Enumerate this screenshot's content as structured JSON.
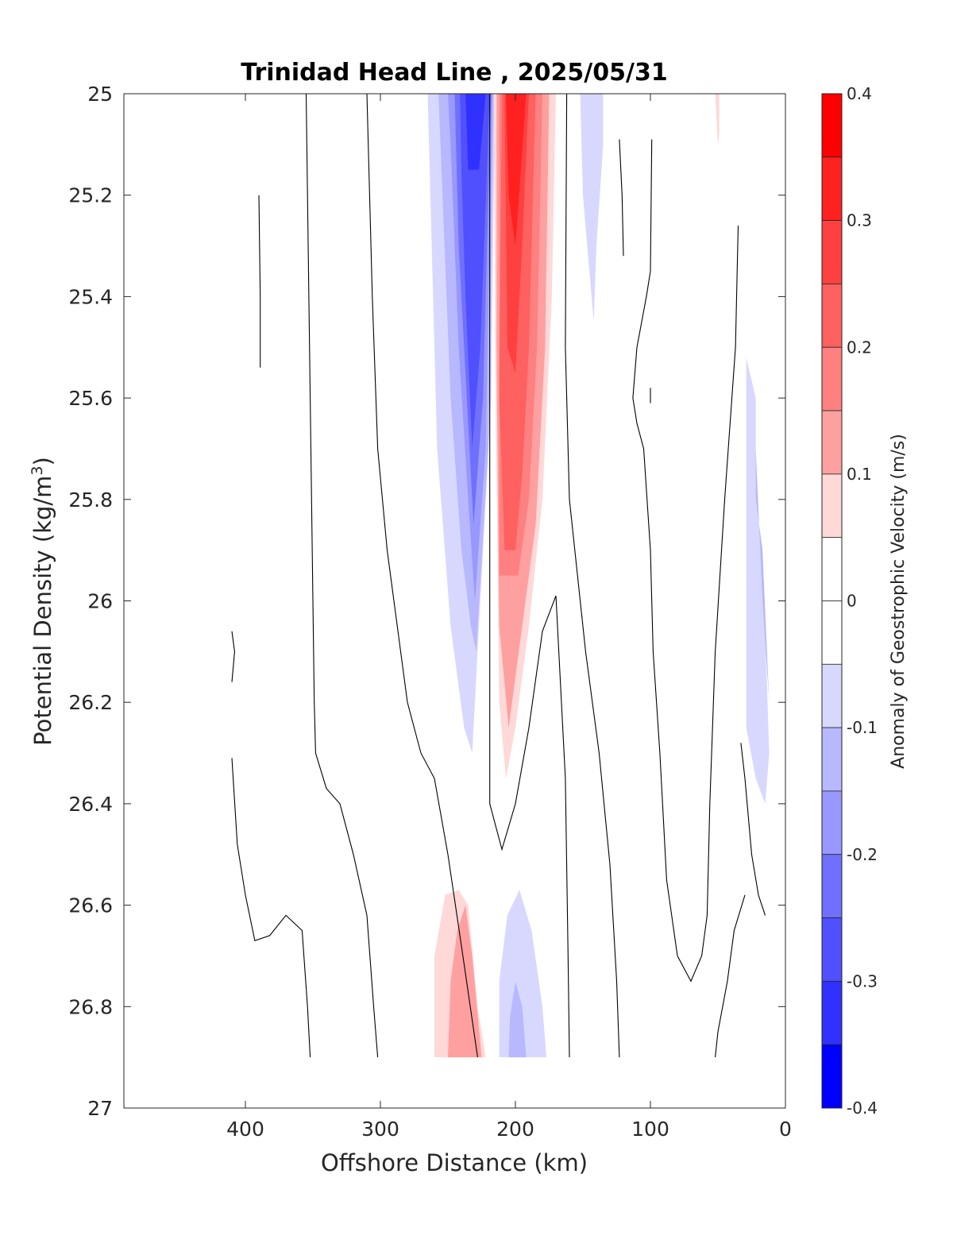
{
  "chart_data": {
    "type": "contour",
    "title": "Trinidad Head Line , 2025/05/31",
    "xlabel": "Offshore Distance (km)",
    "ylabel_main": "Potential Density (kg/m",
    "ylabel_sup": "3",
    "ylabel_close": ")",
    "xlim": [
      490,
      0
    ],
    "ylim": [
      25,
      27
    ],
    "x_reversed": true,
    "y_reversed": true,
    "x_ticks": [
      400,
      300,
      200,
      100,
      0
    ],
    "x_tick_labels": [
      "400",
      "300",
      "200",
      "100",
      "0"
    ],
    "y_ticks": [
      25,
      25.2,
      25.4,
      25.6,
      25.8,
      26,
      26.2,
      26.4,
      26.6,
      26.8,
      27
    ],
    "y_tick_labels": [
      "25",
      "25.2",
      "25.4",
      "25.6",
      "25.8",
      "26",
      "26.2",
      "26.4",
      "26.6",
      "26.8",
      "27"
    ],
    "colorbar": {
      "label": "Anomaly of Geostrophic Velocity (m/s)",
      "range": [
        -0.4,
        0.4
      ],
      "ticks": [
        0.4,
        0.3,
        0.2,
        0.1,
        0,
        -0.1,
        -0.2,
        -0.3,
        -0.4
      ],
      "tick_labels": [
        "0.4",
        "0.3",
        "0.2",
        "0.1",
        "0",
        "-0.1",
        "-0.2",
        "-0.3",
        "-0.4"
      ],
      "levels": [
        {
          "lo": 0.35,
          "hi": 0.4,
          "color": "#ff0000"
        },
        {
          "lo": 0.3,
          "hi": 0.35,
          "color": "#ff2020"
        },
        {
          "lo": 0.25,
          "hi": 0.3,
          "color": "#ff4040"
        },
        {
          "lo": 0.2,
          "hi": 0.25,
          "color": "#ff6060"
        },
        {
          "lo": 0.15,
          "hi": 0.2,
          "color": "#ff8080"
        },
        {
          "lo": 0.1,
          "hi": 0.15,
          "color": "#ffa0a0"
        },
        {
          "lo": 0.05,
          "hi": 0.1,
          "color": "#ffd8d8"
        },
        {
          "lo": 0,
          "hi": 0.05,
          "color": "#ffffff"
        },
        {
          "lo": -0.05,
          "hi": 0,
          "color": "#ffffff"
        },
        {
          "lo": -0.1,
          "hi": -0.05,
          "color": "#d8d8ff"
        },
        {
          "lo": -0.15,
          "hi": -0.1,
          "color": "#b8b8ff"
        },
        {
          "lo": -0.2,
          "hi": -0.15,
          "color": "#9898ff"
        },
        {
          "lo": -0.25,
          "hi": -0.2,
          "color": "#7070ff"
        },
        {
          "lo": -0.3,
          "hi": -0.25,
          "color": "#5050ff"
        },
        {
          "lo": -0.35,
          "hi": -0.3,
          "color": "#3030ff"
        },
        {
          "lo": -0.4,
          "hi": -0.35,
          "color": "#0000ff"
        }
      ]
    },
    "filled_regions": [
      {
        "name": "southward-core-blue-1",
        "color": "#d8d8ff",
        "points": [
          [
            265,
            25
          ],
          [
            215,
            25
          ],
          [
            218,
            25.6
          ],
          [
            228,
            26.1
          ],
          [
            232,
            26.3
          ],
          [
            238,
            26.25
          ],
          [
            248,
            26.05
          ],
          [
            258,
            25.7
          ],
          [
            262,
            25.3
          ]
        ]
      },
      {
        "name": "southward-core-blue-2",
        "color": "#b8b8ff",
        "points": [
          [
            257,
            25
          ],
          [
            216,
            25
          ],
          [
            220,
            25.7
          ],
          [
            229,
            26.1
          ],
          [
            233,
            26.05
          ],
          [
            240,
            25.9
          ],
          [
            248,
            25.6
          ],
          [
            254,
            25.2
          ]
        ]
      },
      {
        "name": "southward-core-blue-3",
        "color": "#9898ff",
        "points": [
          [
            250,
            25
          ],
          [
            217,
            25
          ],
          [
            222,
            25.7
          ],
          [
            230,
            26.0
          ],
          [
            235,
            25.8
          ],
          [
            242,
            25.5
          ],
          [
            248,
            25.1
          ]
        ]
      },
      {
        "name": "southward-core-blue-4",
        "color": "#7070ff",
        "points": [
          [
            245,
            25
          ],
          [
            218,
            25
          ],
          [
            224,
            25.6
          ],
          [
            231,
            25.85
          ],
          [
            236,
            25.6
          ],
          [
            242,
            25.3
          ]
        ]
      },
      {
        "name": "southward-core-blue-5",
        "color": "#5050ff",
        "points": [
          [
            241,
            25
          ],
          [
            219,
            25
          ],
          [
            226,
            25.5
          ],
          [
            232,
            25.7
          ],
          [
            237,
            25.4
          ],
          [
            240,
            25.15
          ]
        ]
      },
      {
        "name": "southward-core-blue-6",
        "color": "#3030ff",
        "points": [
          [
            237,
            25
          ],
          [
            222,
            25
          ],
          [
            227,
            25.15
          ],
          [
            235,
            25.15
          ]
        ]
      },
      {
        "name": "northward-core-red-1",
        "color": "#ffd8d8",
        "points": [
          [
            216,
            25
          ],
          [
            170,
            25
          ],
          [
            173,
            25.4
          ],
          [
            180,
            25.8
          ],
          [
            190,
            26.05
          ],
          [
            200,
            26.25
          ],
          [
            207,
            26.35
          ],
          [
            212,
            26.2
          ],
          [
            215,
            25.5
          ]
        ]
      },
      {
        "name": "northward-core-red-2",
        "color": "#ffa0a0",
        "points": [
          [
            214,
            25
          ],
          [
            175,
            25
          ],
          [
            178,
            25.5
          ],
          [
            185,
            25.85
          ],
          [
            195,
            26.05
          ],
          [
            205,
            26.25
          ],
          [
            212,
            26.05
          ],
          [
            214,
            25.5
          ]
        ]
      },
      {
        "name": "northward-core-red-3",
        "color": "#ff8080",
        "points": [
          [
            212,
            25
          ],
          [
            180,
            25
          ],
          [
            184,
            25.5
          ],
          [
            190,
            25.8
          ],
          [
            198,
            25.95
          ],
          [
            212,
            25.95
          ]
        ]
      },
      {
        "name": "northward-core-red-4",
        "color": "#ff6060",
        "points": [
          [
            210,
            25
          ],
          [
            185,
            25
          ],
          [
            190,
            25.5
          ],
          [
            195,
            25.75
          ],
          [
            200,
            25.9
          ],
          [
            208,
            25.9
          ],
          [
            212,
            25.6
          ]
        ]
      },
      {
        "name": "northward-core-red-5",
        "color": "#ff4040",
        "points": [
          [
            208,
            25
          ],
          [
            190,
            25
          ],
          [
            195,
            25.3
          ],
          [
            200,
            25.55
          ],
          [
            206,
            25.5
          ]
        ]
      },
      {
        "name": "northward-core-red-6",
        "color": "#ff2020",
        "points": [
          [
            207,
            25
          ],
          [
            192,
            25
          ],
          [
            196,
            25.15
          ],
          [
            200,
            25.3
          ],
          [
            205,
            25.2
          ]
        ]
      },
      {
        "name": "offshore-blue-patch-140km",
        "color": "#d8d8ff",
        "points": [
          [
            152,
            25
          ],
          [
            135,
            25
          ],
          [
            135,
            25.1
          ],
          [
            140,
            25.3
          ],
          [
            142,
            25.45
          ],
          [
            150,
            25.2
          ]
        ]
      },
      {
        "name": "nearshore-red-sliver-50km",
        "color": "#ffd8d8",
        "points": [
          [
            52,
            25
          ],
          [
            49,
            25
          ],
          [
            49,
            25.08
          ],
          [
            50,
            25.1
          ],
          [
            51,
            25.05
          ]
        ]
      },
      {
        "name": "nearshore-blue-1",
        "color": "#d8d8ff",
        "points": [
          [
            29,
            25.52
          ],
          [
            22,
            25.6
          ],
          [
            22,
            25.8
          ],
          [
            17,
            25.9
          ],
          [
            12,
            26.3
          ],
          [
            15,
            26.4
          ],
          [
            22,
            26.35
          ],
          [
            29,
            26.25
          ]
        ]
      },
      {
        "name": "nearshore-blue-2",
        "color": "#b8b8ff",
        "points": [
          [
            22,
            25.6
          ],
          [
            22,
            25.8
          ],
          [
            17,
            25.9
          ],
          [
            12,
            26.2
          ],
          [
            17,
            26.0
          ],
          [
            22,
            25.7
          ]
        ]
      },
      {
        "name": "deep-red-patch-240km",
        "color": "#ffd8d8",
        "points": [
          [
            260,
            26.9
          ],
          [
            222,
            26.9
          ],
          [
            228,
            26.8
          ],
          [
            235,
            26.6
          ],
          [
            242,
            26.57
          ],
          [
            252,
            26.58
          ],
          [
            260,
            26.7
          ]
        ]
      },
      {
        "name": "deep-red-patch-240km-core",
        "color": "#ffa0a0",
        "points": [
          [
            250,
            26.9
          ],
          [
            225,
            26.9
          ],
          [
            232,
            26.7
          ],
          [
            237,
            26.6
          ],
          [
            243,
            26.65
          ],
          [
            248,
            26.75
          ]
        ]
      },
      {
        "name": "deep-blue-patch-200km",
        "color": "#d8d8ff",
        "points": [
          [
            212,
            26.9
          ],
          [
            177,
            26.9
          ],
          [
            180,
            26.8
          ],
          [
            188,
            26.65
          ],
          [
            197,
            26.57
          ],
          [
            206,
            26.62
          ],
          [
            212,
            26.75
          ]
        ]
      },
      {
        "name": "deep-blue-patch-200km-core",
        "color": "#b8b8ff",
        "points": [
          [
            205,
            26.9
          ],
          [
            192,
            26.9
          ],
          [
            195,
            26.8
          ],
          [
            200,
            26.75
          ],
          [
            204,
            26.82
          ]
        ]
      }
    ],
    "contour_lines": [
      {
        "name": "contour-line-1",
        "points": [
          [
            390,
            25.2
          ],
          [
            389,
            25.4
          ],
          [
            389,
            25.54
          ]
        ]
      },
      {
        "name": "contour-line-2",
        "points": [
          [
            410,
            26.06
          ],
          [
            408,
            26.1
          ],
          [
            410,
            26.16
          ]
        ]
      },
      {
        "name": "contour-line-3",
        "points": [
          [
            410,
            26.31
          ],
          [
            406,
            26.48
          ],
          [
            400,
            26.58
          ],
          [
            393,
            26.67
          ],
          [
            382,
            26.66
          ],
          [
            370,
            26.62
          ],
          [
            358,
            26.65
          ],
          [
            354,
            26.8
          ],
          [
            352,
            26.9
          ]
        ]
      },
      {
        "name": "contour-line-4",
        "points": [
          [
            355,
            25
          ],
          [
            353,
            25.4
          ],
          [
            351,
            25.8
          ],
          [
            349,
            26.2
          ],
          [
            348,
            26.3
          ],
          [
            340,
            26.37
          ],
          [
            330,
            26.4
          ],
          [
            320,
            26.5
          ],
          [
            310,
            26.62
          ],
          [
            305,
            26.8
          ],
          [
            302,
            26.9
          ]
        ]
      },
      {
        "name": "contour-line-5",
        "points": [
          [
            310,
            25
          ],
          [
            306,
            25.4
          ],
          [
            302,
            25.7
          ],
          [
            295,
            25.9
          ],
          [
            290,
            26.0
          ],
          [
            280,
            26.2
          ],
          [
            270,
            26.3
          ],
          [
            260,
            26.35
          ],
          [
            250,
            26.5
          ],
          [
            240,
            26.68
          ],
          [
            228,
            26.9
          ]
        ]
      },
      {
        "name": "contour-line-6",
        "points": [
          [
            219,
            25
          ],
          [
            219,
            25.5
          ],
          [
            219,
            26.0
          ],
          [
            219,
            26.4
          ],
          [
            210,
            26.49
          ],
          [
            200,
            26.4
          ],
          [
            190,
            26.25
          ],
          [
            180,
            26.06
          ],
          [
            170,
            25.99
          ],
          [
            163,
            26.35
          ],
          [
            161,
            26.7
          ],
          [
            160,
            26.9
          ]
        ]
      },
      {
        "name": "contour-line-7",
        "points": [
          [
            162,
            25
          ],
          [
            163,
            25.5
          ],
          [
            160,
            25.8
          ],
          [
            148,
            26.1
          ],
          [
            138,
            26.3
          ],
          [
            130,
            26.52
          ],
          [
            125,
            26.75
          ],
          [
            123,
            26.9
          ]
        ]
      },
      {
        "name": "contour-line-8",
        "points": [
          [
            123,
            25.09
          ],
          [
            121,
            25.2
          ],
          [
            120,
            25.32
          ],
          [
            121,
            25.2
          ],
          [
            123,
            25.09
          ]
        ]
      },
      {
        "name": "contour-line-9",
        "points": [
          [
            100,
            25.58
          ],
          [
            100,
            25.61
          ]
        ]
      },
      {
        "name": "contour-line-10",
        "points": [
          [
            99,
            25.09
          ],
          [
            100,
            25.35
          ],
          [
            103,
            25.4
          ],
          [
            110,
            25.5
          ],
          [
            113,
            25.6
          ],
          [
            110,
            25.65
          ],
          [
            105,
            25.7
          ],
          [
            100,
            25.9
          ],
          [
            98,
            26.1
          ],
          [
            93,
            26.3
          ],
          [
            88,
            26.55
          ],
          [
            80,
            26.7
          ],
          [
            70,
            26.75
          ],
          [
            62,
            26.7
          ],
          [
            58,
            26.62
          ],
          [
            56,
            26.4
          ],
          [
            52,
            26.1
          ],
          [
            45,
            25.8
          ],
          [
            37,
            25.5
          ],
          [
            35,
            25.26
          ]
        ]
      },
      {
        "name": "contour-line-11",
        "points": [
          [
            33,
            26.28
          ],
          [
            30,
            26.35
          ],
          [
            25,
            26.5
          ],
          [
            20,
            26.58
          ],
          [
            15,
            26.62
          ]
        ]
      },
      {
        "name": "contour-line-12",
        "points": [
          [
            52,
            26.9
          ],
          [
            50,
            26.85
          ],
          [
            43,
            26.75
          ],
          [
            38,
            26.65
          ],
          [
            30,
            26.58
          ]
        ]
      }
    ]
  }
}
